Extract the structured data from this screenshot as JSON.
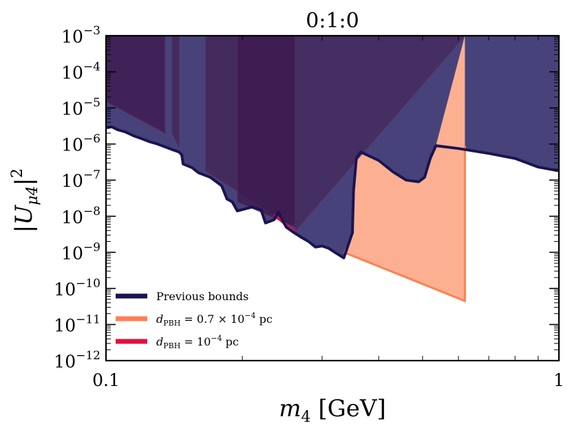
{
  "chart_data": {
    "type": "area",
    "title": "0:1:0",
    "xlabel": "m₄ [GeV]",
    "ylabel": "|Uμ4|²",
    "xscale": "log",
    "yscale": "log",
    "xlim": [
      0.1,
      1
    ],
    "ylim": [
      1e-12,
      0.001
    ],
    "x_tick_labels": [
      {
        "value": 0.1,
        "label": "0.1"
      },
      {
        "value": 1,
        "label": "1"
      }
    ],
    "y_tick_labels": [
      {
        "value": 0.001,
        "base": "10",
        "exp": "−3"
      },
      {
        "value": 0.0001,
        "base": "10",
        "exp": "−4"
      },
      {
        "value": 1e-05,
        "base": "10",
        "exp": "−5"
      },
      {
        "value": 1e-06,
        "base": "10",
        "exp": "−6"
      },
      {
        "value": 1e-07,
        "base": "10",
        "exp": "−7"
      },
      {
        "value": 1e-08,
        "base": "10",
        "exp": "−8"
      },
      {
        "value": 1e-09,
        "base": "10",
        "exp": "−9"
      },
      {
        "value": 1e-10,
        "base": "10",
        "exp": "−10"
      },
      {
        "value": 1e-11,
        "base": "10",
        "exp": "−11"
      },
      {
        "value": 1e-12,
        "base": "10",
        "exp": "−12"
      }
    ],
    "legend_position": "bottom-left",
    "series": [
      {
        "name": "Previous bounds",
        "kind": "boundary-line",
        "color": "#1a1452",
        "fill_color": "#47437a",
        "points": [
          [
            0.1,
            2.8e-06
          ],
          [
            0.103,
            3e-06
          ],
          [
            0.106,
            2.5e-06
          ],
          [
            0.11,
            2.2e-06
          ],
          [
            0.115,
            1.7e-06
          ],
          [
            0.12,
            1.4e-06
          ],
          [
            0.125,
            1.15e-06
          ],
          [
            0.13,
            1e-06
          ],
          [
            0.14,
            7e-07
          ],
          [
            0.145,
            6e-07
          ],
          [
            0.147,
            5e-07
          ],
          [
            0.148,
            2.8e-07
          ],
          [
            0.155,
            2.2e-07
          ],
          [
            0.16,
            1.6e-07
          ],
          [
            0.17,
            1.2e-07
          ],
          [
            0.18,
            7e-08
          ],
          [
            0.185,
            3e-08
          ],
          [
            0.19,
            2.5e-08
          ],
          [
            0.195,
            1.4e-08
          ],
          [
            0.21,
            1.8e-08
          ],
          [
            0.22,
            1.5e-08
          ],
          [
            0.225,
            6.5e-09
          ],
          [
            0.235,
            8e-09
          ],
          [
            0.24,
            1.3e-08
          ],
          [
            0.25,
            5e-09
          ],
          [
            0.26,
            3.5e-09
          ],
          [
            0.27,
            2.6e-09
          ],
          [
            0.28,
            2e-09
          ],
          [
            0.29,
            1.4e-09
          ],
          [
            0.3,
            1.5e-09
          ],
          [
            0.31,
            1.3e-09
          ],
          [
            0.32,
            1e-09
          ],
          [
            0.335,
            7e-10
          ],
          [
            0.35,
            3.5e-09
          ],
          [
            0.352,
            5e-08
          ],
          [
            0.357,
            4e-07
          ],
          [
            0.365,
            6e-07
          ],
          [
            0.4,
            3.5e-07
          ],
          [
            0.43,
            1.7e-07
          ],
          [
            0.46,
            1e-07
          ],
          [
            0.49,
            9e-08
          ],
          [
            0.505,
            1.2e-07
          ],
          [
            0.52,
            4e-07
          ],
          [
            0.535,
            9e-07
          ],
          [
            0.6,
            7.5e-07
          ],
          [
            0.7,
            5.5e-07
          ],
          [
            0.8,
            4e-07
          ],
          [
            0.9,
            2.3e-07
          ],
          [
            1.0,
            1.8e-07
          ]
        ]
      },
      {
        "name": "d_PBH = 0.7 × 10^−4 pc",
        "legend_main": "d",
        "legend_sub": "PBH",
        "legend_mid": " = 0.7 × 10",
        "legend_exp": "−4",
        "legend_unit": " pc",
        "kind": "region",
        "color": "#ff7f50",
        "fill_color": "#fdb091",
        "points": [
          [
            0.335,
            1e-09
          ],
          [
            0.62,
            4.5e-11
          ],
          [
            0.62,
            0.001
          ]
        ]
      },
      {
        "name": "d_PBH = 10^−4 pc",
        "legend_main": "d",
        "legend_sub": "PBH",
        "legend_mid": " = 10",
        "legend_exp": "−4",
        "legend_unit": " pc",
        "kind": "region",
        "color": "#e0103d",
        "fill_color": "#e0103d",
        "points": [
          [
            0.235,
            1.1e-08
          ],
          [
            0.262,
            3.5e-09
          ],
          [
            0.262,
            0.001
          ]
        ]
      }
    ],
    "bands": [
      {
        "x": [
          0.1,
          0.135
        ],
        "y_top": 0.001,
        "y_bottom_left": 1.5e-05,
        "y_bottom_right": 2e-06,
        "color": "#3f1a50"
      },
      {
        "x": [
          0.14,
          0.145
        ],
        "y_top": 0.001,
        "y_bottom_left": 2e-06,
        "y_bottom_right": 8e-07,
        "color": "#432657"
      },
      {
        "x": [
          0.166,
          0.26
        ],
        "y_top": 0.001,
        "y_bottom_left": 1.8e-07,
        "y_bottom_right": 5e-09,
        "color": "#432657"
      },
      {
        "x": [
          0.195,
          0.262
        ],
        "y_top": 0.001,
        "y_bottom_left": 2.5e-08,
        "y_bottom_right": 5e-09,
        "color": "#3d1a50"
      },
      {
        "x": [
          0.262,
          0.62
        ],
        "y_top": 0.001,
        "y_bottom_left": 4e-09,
        "y_bottom_right": 0.001,
        "color": "#45295b"
      }
    ]
  }
}
